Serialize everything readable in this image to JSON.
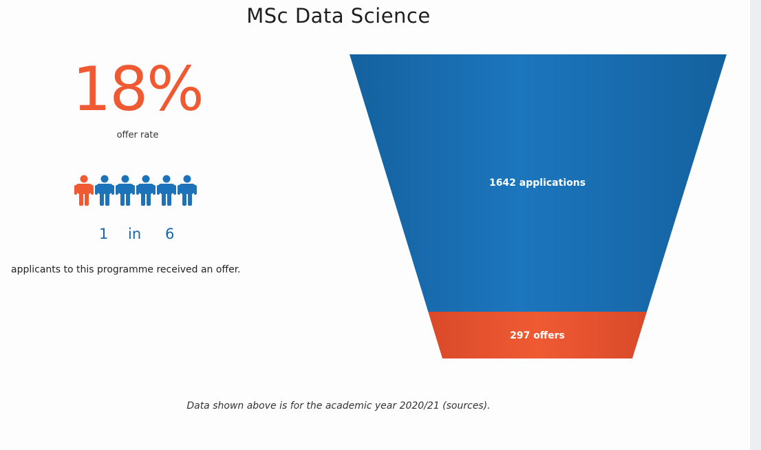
{
  "page": {
    "title": "MSc Data Science",
    "offer_rate": "18%",
    "offer_rate_label": "offer rate",
    "ratio": {
      "numerator": "1",
      "word": "in",
      "denominator": "6"
    },
    "applicants_text": "applicants to this programme received an offer.",
    "footnote": "Data shown above is for the academic year 2020/21 (sources)."
  },
  "people_icons": [
    {
      "name": "person-icon-highlight",
      "color": "#ef5a32"
    },
    {
      "name": "person-icon",
      "color": "#1c73b9"
    },
    {
      "name": "person-icon",
      "color": "#1c73b9"
    },
    {
      "name": "person-icon",
      "color": "#1c73b9"
    },
    {
      "name": "person-icon",
      "color": "#1c73b9"
    },
    {
      "name": "person-icon",
      "color": "#1c73b9"
    }
  ],
  "colors": {
    "accent_orange": "#ef5a32",
    "funnel_blue": "#1c73b9",
    "funnel_blue_dark": "#14619e",
    "funnel_orange": "#e85430"
  },
  "chart_data": {
    "type": "funnel",
    "stages": [
      {
        "label": "1642 applications",
        "value": 1642
      },
      {
        "label": "297 offers",
        "value": 297
      }
    ]
  }
}
